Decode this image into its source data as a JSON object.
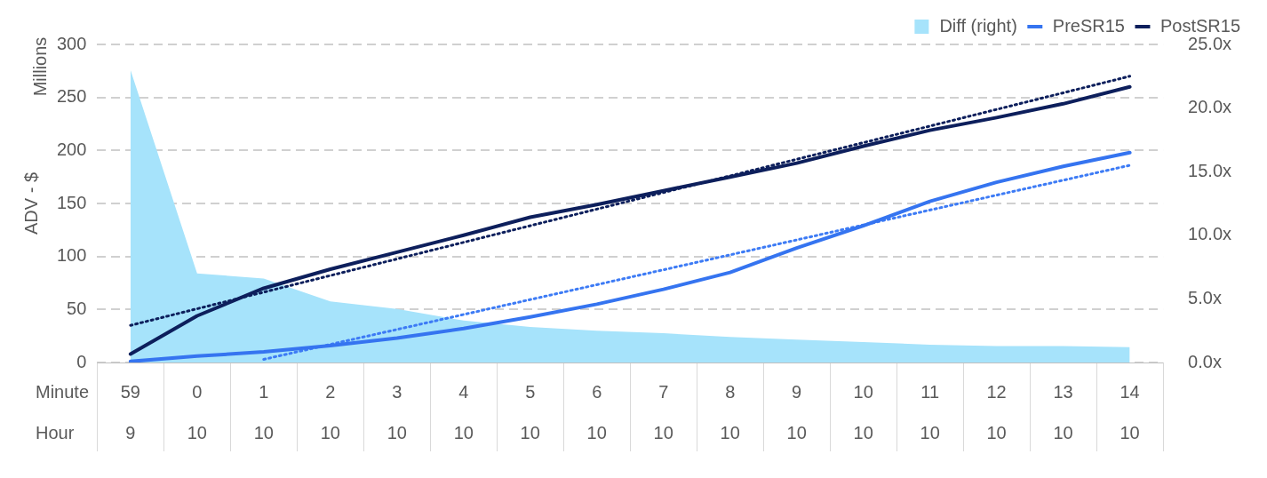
{
  "chart_data": {
    "type": "line",
    "ylabel": "ADV - $",
    "annotations": [
      "Millions",
      "Minute",
      "Hour"
    ],
    "categories": [
      "59\n9",
      "0\n10",
      "1\n10",
      "2\n10",
      "3\n10",
      "4\n10",
      "5\n10",
      "6\n10",
      "7\n10",
      "8\n10",
      "9\n10",
      "10\n10",
      "11\n10",
      "12\n10",
      "13\n10",
      "14\n10"
    ],
    "series": [
      {
        "name": "Diff (right)",
        "type": "area",
        "axis": "y2",
        "color": "#a6e3fb",
        "values": [
          23.0,
          7.0,
          6.6,
          4.8,
          4.2,
          3.3,
          2.8,
          2.5,
          2.3,
          2.0,
          1.8,
          1.6,
          1.4,
          1.3,
          1.3,
          1.2
        ]
      },
      {
        "name": "PreSR15",
        "color": "#3574f0",
        "values": [
          1,
          6,
          10,
          16,
          23,
          32,
          43,
          55,
          69,
          85,
          108,
          129,
          152,
          170,
          185,
          198
        ]
      },
      {
        "name": "PostSR15",
        "color": "#0d1f5c",
        "values": [
          8,
          44,
          70,
          88,
          104,
          120,
          137,
          149,
          162,
          175,
          188,
          204,
          219,
          231,
          244,
          260
        ]
      },
      {
        "color": "#3d7bf5",
        "line_style": "dotted",
        "values": [
          null,
          null,
          3,
          null,
          null,
          null,
          null,
          null,
          null,
          null,
          null,
          null,
          null,
          null,
          null,
          186
        ]
      },
      {
        "color": "#0d1f5c",
        "line_style": "dotted",
        "values": [
          35,
          null,
          null,
          null,
          null,
          null,
          null,
          null,
          null,
          null,
          null,
          null,
          null,
          null,
          null,
          270
        ]
      }
    ],
    "ylim": [
      0,
      300
    ],
    "yticks": [
      0,
      50,
      100,
      150,
      200,
      250,
      300
    ],
    "y2lim": [
      0,
      25
    ],
    "y2ticks": [
      {
        "value": 0,
        "label": "0.0x"
      },
      {
        "value": 5,
        "label": "5.0x"
      },
      {
        "value": 10,
        "label": "10.0x"
      },
      {
        "value": 15,
        "label": "15.0x"
      },
      {
        "value": 20,
        "label": "20.0x"
      },
      {
        "value": 25,
        "label": "25.0x"
      }
    ],
    "grid": "y",
    "legend": "top right",
    "line_style": "solid",
    "marker": "none"
  }
}
